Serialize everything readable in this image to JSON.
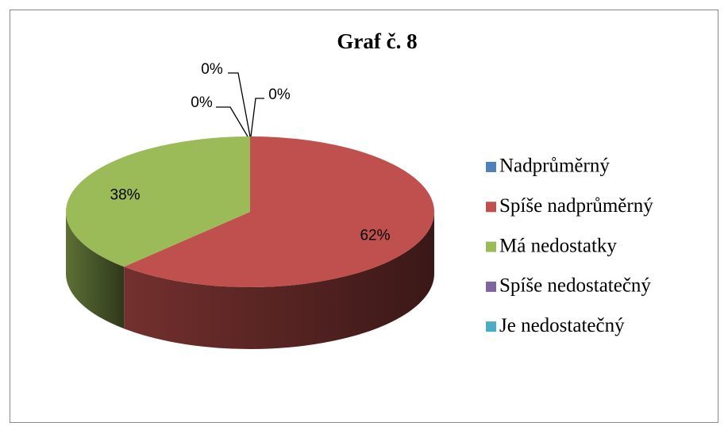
{
  "chart_data": {
    "type": "pie",
    "title": "Graf č. 8",
    "categories": [
      "Nadprůměrný",
      "Spíše nadprůměrný",
      "Má nedostatky",
      "Spíše nedostatečný",
      "Je nedostatečný"
    ],
    "values": [
      0,
      62,
      38,
      0,
      0
    ],
    "value_labels": [
      "0%",
      "62%",
      "38%",
      "0%",
      "0%"
    ],
    "colors": [
      "#4f81bd",
      "#c0504d",
      "#9bbb59",
      "#8064a2",
      "#4bacc6"
    ],
    "legend": "right"
  }
}
